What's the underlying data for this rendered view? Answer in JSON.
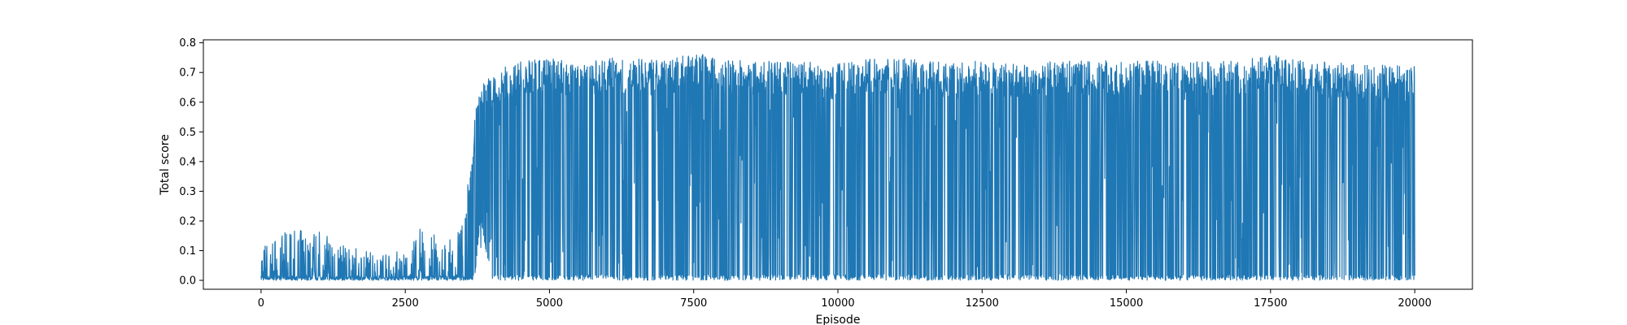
{
  "chart_data": {
    "type": "line",
    "title": "",
    "xlabel": "Episode",
    "ylabel": "Total score",
    "xlim": [
      -1000,
      21000
    ],
    "ylim": [
      -0.03,
      0.81
    ],
    "xticks": [
      0,
      2500,
      5000,
      7500,
      10000,
      12500,
      15000,
      17500,
      20000
    ],
    "xtick_labels": [
      "0",
      "2500",
      "5000",
      "7500",
      "10000",
      "12500",
      "15000",
      "17500",
      "20000"
    ],
    "yticks": [
      0.0,
      0.1,
      0.2,
      0.3,
      0.4,
      0.5,
      0.6,
      0.7,
      0.8
    ],
    "ytick_labels": [
      "0.0",
      "0.1",
      "0.2",
      "0.3",
      "0.4",
      "0.5",
      "0.6",
      "0.7",
      "0.8"
    ],
    "grid": false,
    "legend": "none",
    "series_color": "#1f77b4",
    "series": [
      {
        "episodes": 20000,
        "envelope": [
          {
            "x": 0,
            "min": 0.0,
            "max": 0.12
          },
          {
            "x": 500,
            "min": 0.0,
            "max": 0.17
          },
          {
            "x": 1000,
            "min": 0.0,
            "max": 0.17
          },
          {
            "x": 1500,
            "min": 0.0,
            "max": 0.11
          },
          {
            "x": 2000,
            "min": 0.0,
            "max": 0.1
          },
          {
            "x": 2500,
            "min": 0.0,
            "max": 0.1
          },
          {
            "x": 2800,
            "min": 0.0,
            "max": 0.19
          },
          {
            "x": 3200,
            "min": 0.0,
            "max": 0.12
          },
          {
            "x": 3500,
            "min": 0.0,
            "max": 0.19
          },
          {
            "x": 3700,
            "min": 0.0,
            "max": 0.55
          },
          {
            "x": 3800,
            "min": 0.2,
            "max": 0.7
          },
          {
            "x": 4000,
            "min": 0.0,
            "max": 0.7
          },
          {
            "x": 4500,
            "min": 0.0,
            "max": 0.74
          },
          {
            "x": 5000,
            "min": 0.0,
            "max": 0.75
          },
          {
            "x": 5500,
            "min": 0.0,
            "max": 0.74
          },
          {
            "x": 6000,
            "min": 0.0,
            "max": 0.75
          },
          {
            "x": 7000,
            "min": 0.0,
            "max": 0.74
          },
          {
            "x": 7500,
            "min": 0.0,
            "max": 0.77
          },
          {
            "x": 8000,
            "min": 0.0,
            "max": 0.74
          },
          {
            "x": 9000,
            "min": 0.0,
            "max": 0.74
          },
          {
            "x": 10000,
            "min": 0.0,
            "max": 0.73
          },
          {
            "x": 10500,
            "min": 0.0,
            "max": 0.75
          },
          {
            "x": 11000,
            "min": 0.0,
            "max": 0.75
          },
          {
            "x": 11500,
            "min": 0.0,
            "max": 0.74
          },
          {
            "x": 12000,
            "min": 0.0,
            "max": 0.73
          },
          {
            "x": 12500,
            "min": 0.0,
            "max": 0.74
          },
          {
            "x": 13000,
            "min": 0.0,
            "max": 0.73
          },
          {
            "x": 14000,
            "min": 0.0,
            "max": 0.74
          },
          {
            "x": 15000,
            "min": 0.0,
            "max": 0.74
          },
          {
            "x": 16000,
            "min": 0.0,
            "max": 0.74
          },
          {
            "x": 17000,
            "min": 0.0,
            "max": 0.74
          },
          {
            "x": 17500,
            "min": 0.0,
            "max": 0.76
          },
          {
            "x": 18000,
            "min": 0.0,
            "max": 0.74
          },
          {
            "x": 19000,
            "min": 0.0,
            "max": 0.73
          },
          {
            "x": 20000,
            "min": 0.0,
            "max": 0.72
          }
        ]
      }
    ]
  }
}
